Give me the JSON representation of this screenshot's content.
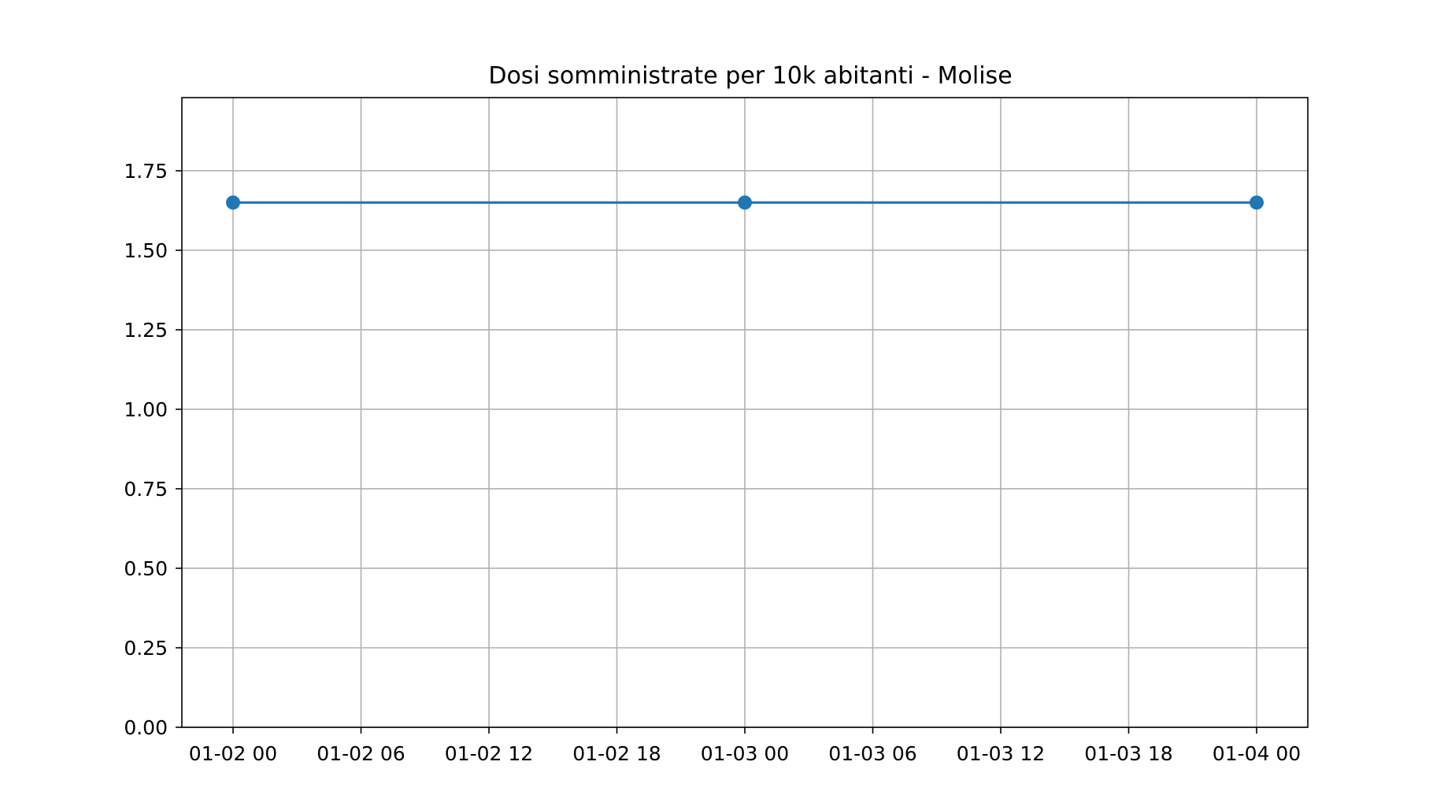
{
  "chart_data": {
    "type": "line",
    "title": "Dosi somministrate per 10k abitanti - Molise",
    "xlabel": "",
    "ylabel": "",
    "x_type": "datetime",
    "x": [
      "2021-01-02T00:00",
      "2021-01-03T00:00",
      "2021-01-04T00:00"
    ],
    "series": [
      {
        "values": [
          1.65,
          1.65,
          1.65
        ],
        "color": "#1f77b4",
        "marker": "circle"
      }
    ],
    "xlim": [
      "2021-01-01T21:36",
      "2021-01-04T02:24"
    ],
    "ylim": [
      0,
      1.98
    ],
    "x_ticks": [
      {
        "value": "2021-01-02T00:00",
        "label": "01-02 00"
      },
      {
        "value": "2021-01-02T06:00",
        "label": "01-02 06"
      },
      {
        "value": "2021-01-02T12:00",
        "label": "01-02 12"
      },
      {
        "value": "2021-01-02T18:00",
        "label": "01-02 18"
      },
      {
        "value": "2021-01-03T00:00",
        "label": "01-03 00"
      },
      {
        "value": "2021-01-03T06:00",
        "label": "01-03 06"
      },
      {
        "value": "2021-01-03T12:00",
        "label": "01-03 12"
      },
      {
        "value": "2021-01-03T18:00",
        "label": "01-03 18"
      },
      {
        "value": "2021-01-04T00:00",
        "label": "01-04 00"
      }
    ],
    "y_ticks": [
      {
        "value": 0.0,
        "label": "0.00"
      },
      {
        "value": 0.25,
        "label": "0.25"
      },
      {
        "value": 0.5,
        "label": "0.50"
      },
      {
        "value": 0.75,
        "label": "0.75"
      },
      {
        "value": 1.0,
        "label": "1.00"
      },
      {
        "value": 1.25,
        "label": "1.25"
      },
      {
        "value": 1.5,
        "label": "1.50"
      },
      {
        "value": 1.75,
        "label": "1.75"
      }
    ],
    "grid": true,
    "legend": "none",
    "colors": {
      "line": "#1f77b4",
      "grid": "#b0b0b0",
      "axes": "#000000",
      "text": "#000000",
      "background": "#ffffff"
    }
  }
}
